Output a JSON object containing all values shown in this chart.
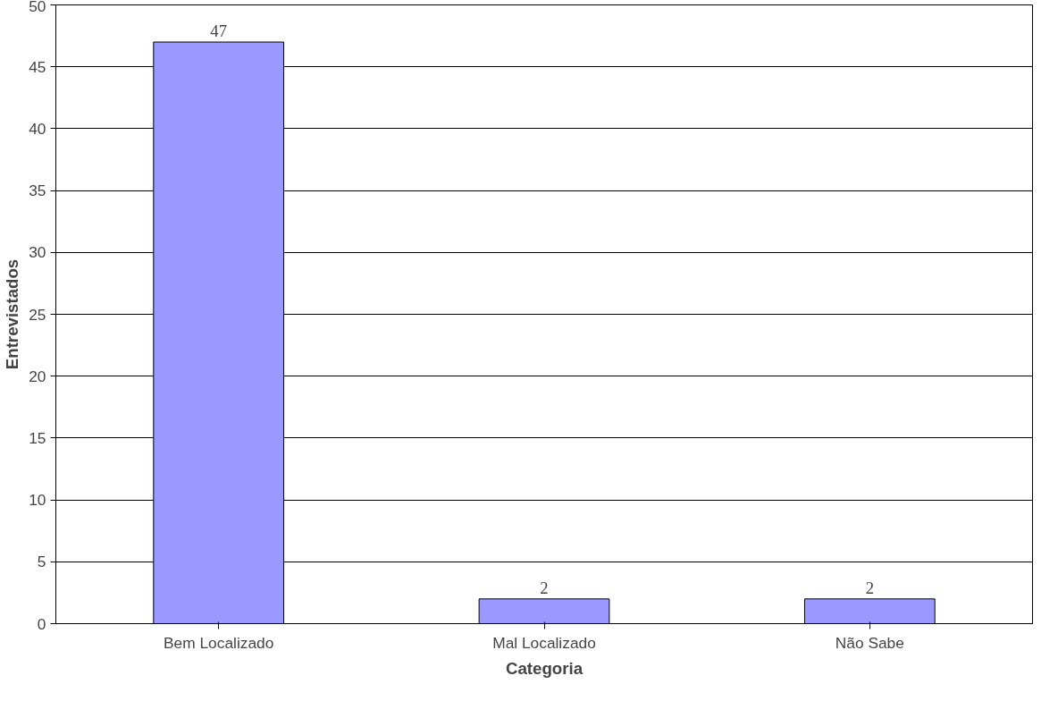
{
  "chart_data": {
    "type": "bar",
    "xlabel": "Categoria",
    "ylabel": "Entrevistados",
    "categories": [
      "Bem Localizado",
      "Mal Localizado",
      "Não Sabe"
    ],
    "values": [
      47,
      2,
      2
    ],
    "color": "#9999ff",
    "ylim": [
      0,
      50
    ],
    "yticks": [
      0,
      5,
      10,
      15,
      20,
      25,
      30,
      35,
      40,
      45,
      50
    ],
    "grid": "y",
    "data_labels": true
  }
}
